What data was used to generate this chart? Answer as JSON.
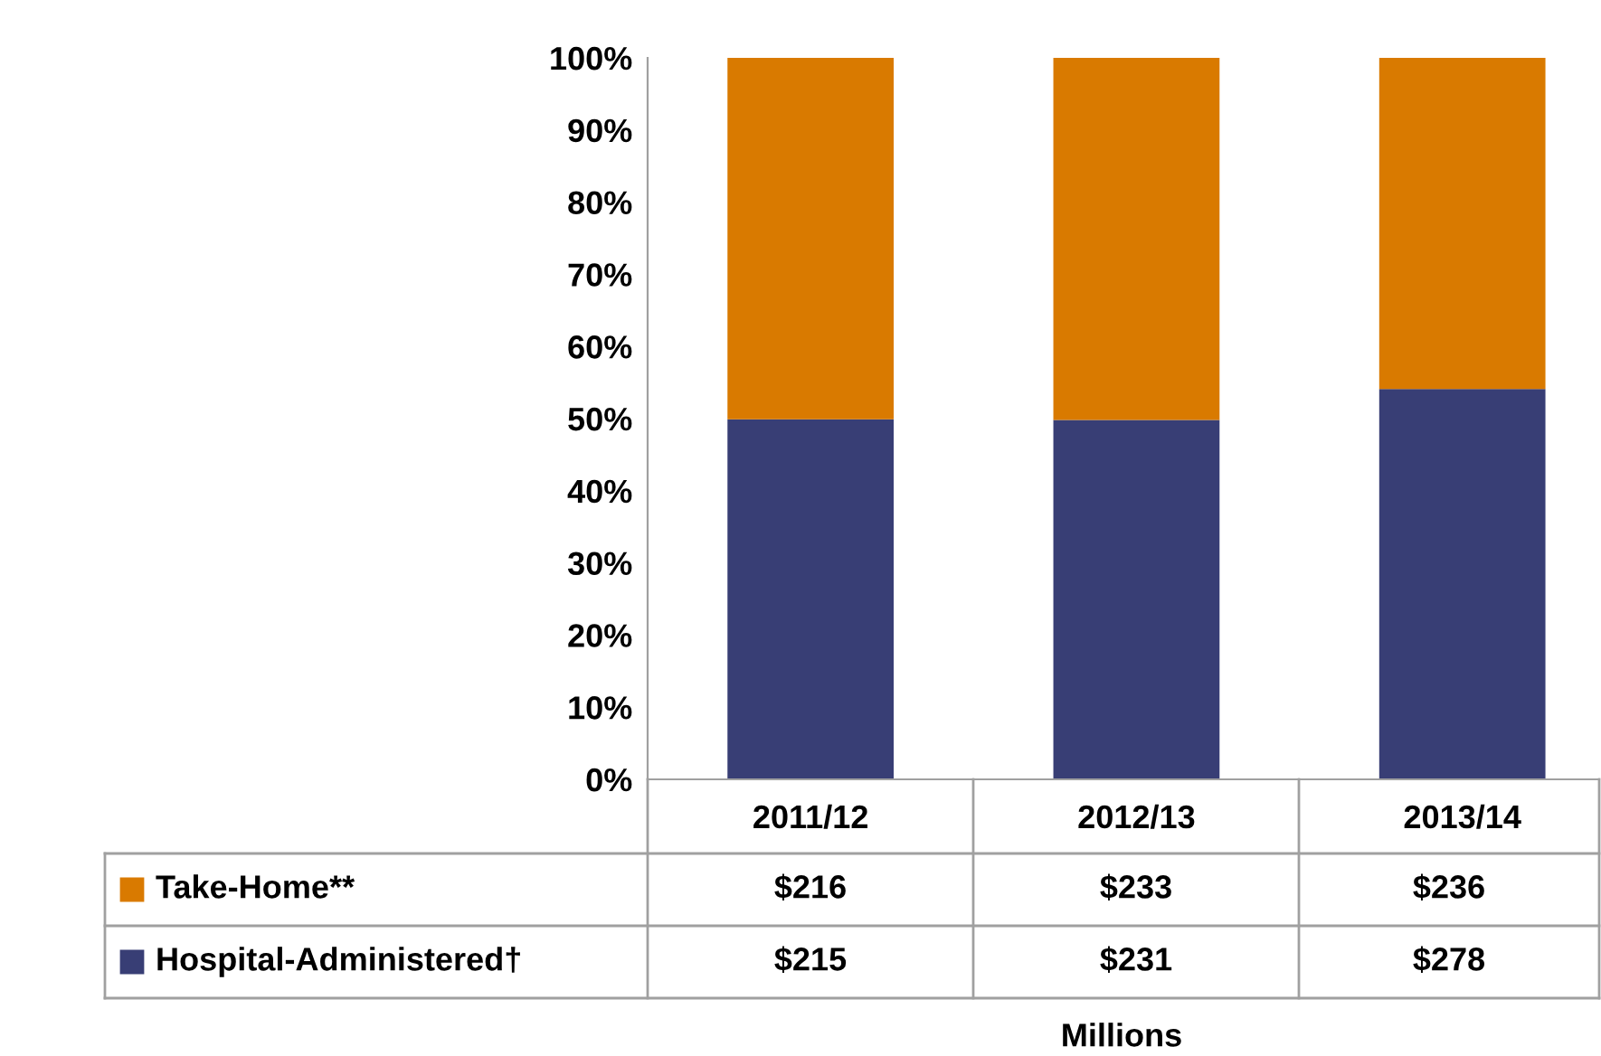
{
  "chart_data": {
    "type": "bar",
    "stacked": true,
    "annotations": [
      "$216",
      "$233",
      "$236",
      "$215",
      "$231",
      "$278",
      "Millions"
    ],
    "categories": [
      "2011/12",
      "2012/13",
      "2013/14"
    ],
    "series": [
      {
        "name": "Hospital-Administered†",
        "color": "#383e75",
        "values": [
          49.9,
          49.8,
          54.1
        ]
      },
      {
        "name": "Take-Home**",
        "color": "#d97a00",
        "values": [
          50.1,
          50.2,
          45.9
        ]
      }
    ],
    "ylim": [
      0,
      100
    ],
    "yticks": [
      {
        "value": 0,
        "label": "0%"
      },
      {
        "value": 10,
        "label": "10%"
      },
      {
        "value": 20,
        "label": "20%"
      },
      {
        "value": 30,
        "label": "30%"
      },
      {
        "value": 40,
        "label": "40%"
      },
      {
        "value": 50,
        "label": "50%"
      },
      {
        "value": 60,
        "label": "60%"
      },
      {
        "value": 70,
        "label": "70%"
      },
      {
        "value": 80,
        "label": "80%"
      },
      {
        "value": 90,
        "label": "90%"
      },
      {
        "value": 100,
        "label": "100%"
      }
    ],
    "grid": false,
    "legend": "bottom"
  }
}
